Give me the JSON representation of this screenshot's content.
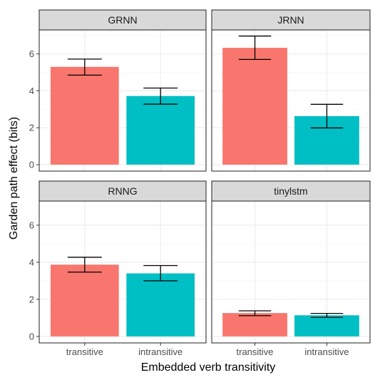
{
  "chart_data": {
    "type": "bar",
    "layout": "facet-grid-2x2",
    "xlabel": "Embedded verb transitivity",
    "ylabel": "Garden path effect (bits)",
    "categories": [
      "transitive",
      "intransitive"
    ],
    "ylim": [
      -0.35,
      7.3
    ],
    "yticks": [
      0,
      2,
      4,
      6
    ],
    "grid": true,
    "legend": "none",
    "colors": {
      "transitive": "#F8766D",
      "intransitive": "#00BFC4",
      "panel_border": "#333333",
      "strip_fill": "#D9D9D9",
      "grid_major": "#EBEBEB",
      "grid_minor": "#F5F5F5"
    },
    "panels": [
      {
        "title": "GRNN",
        "values": [
          5.3,
          3.72
        ],
        "error_low": [
          4.85,
          3.28
        ],
        "error_high": [
          5.72,
          4.15
        ]
      },
      {
        "title": "JRNN",
        "values": [
          6.33,
          2.63
        ],
        "error_low": [
          5.7,
          1.99
        ],
        "error_high": [
          6.97,
          3.27
        ]
      },
      {
        "title": "RNNG",
        "values": [
          3.87,
          3.4
        ],
        "error_low": [
          3.47,
          3.0
        ],
        "error_high": [
          4.27,
          3.82
        ]
      },
      {
        "title": "tinylstm",
        "values": [
          1.26,
          1.14
        ],
        "error_low": [
          1.12,
          1.03
        ],
        "error_high": [
          1.38,
          1.24
        ]
      }
    ]
  }
}
